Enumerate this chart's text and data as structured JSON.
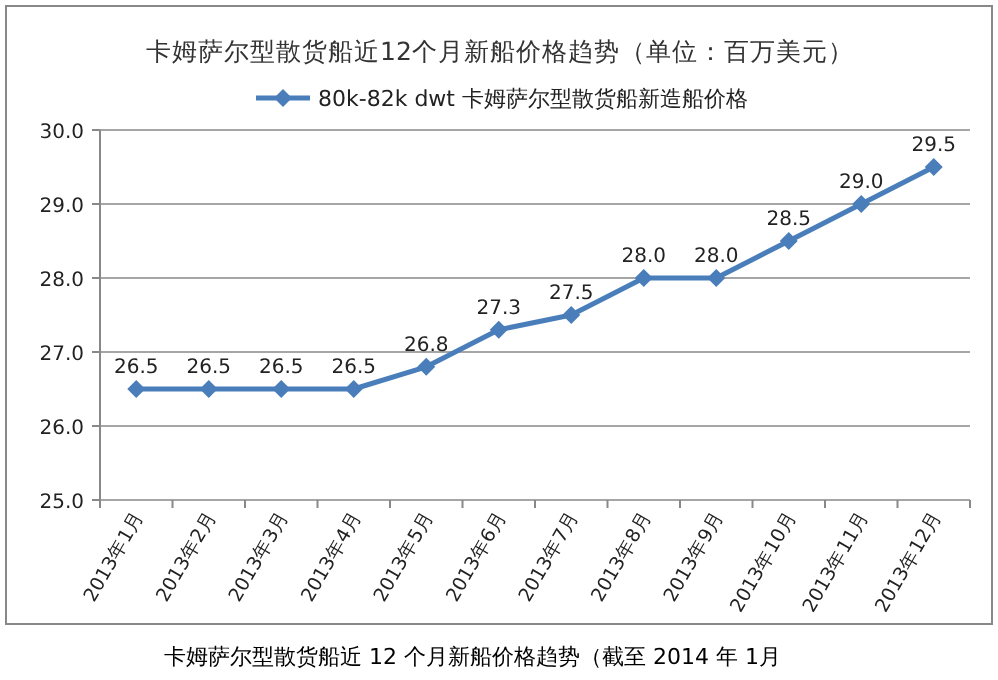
{
  "chart_data": {
    "type": "line",
    "title": "卡姆萨尔型散货船近12个月新船价格趋势（单位：百万美元）",
    "categories": [
      "2013年1月",
      "2013年2月",
      "2013年3月",
      "2013年4月",
      "2013年5月",
      "2013年6月",
      "2013年7月",
      "2013年8月",
      "2013年9月",
      "2013年10月",
      "2013年11月",
      "2013年12月"
    ],
    "series": [
      {
        "name": "80k-82k dwt 卡姆萨尔型散货船新造船价格",
        "color": "#4a7ebb",
        "values": [
          26.5,
          26.5,
          26.5,
          26.5,
          26.8,
          27.3,
          27.5,
          28.0,
          28.0,
          28.5,
          29.0,
          29.5
        ],
        "value_labels": [
          "26.5",
          "26.5",
          "26.5",
          "26.5",
          "26.8",
          "27.3",
          "27.5",
          "28.0",
          "28.0",
          "28.5",
          "29.0",
          "29.5"
        ]
      }
    ],
    "ylim": [
      25,
      30
    ],
    "yticks": [
      {
        "value": 25,
        "label": "25.0"
      },
      {
        "value": 26,
        "label": "26.0"
      },
      {
        "value": 27,
        "label": "27.0"
      },
      {
        "value": 28,
        "label": "28.0"
      },
      {
        "value": 29,
        "label": "29.0"
      },
      {
        "value": 30,
        "label": "30.0"
      }
    ],
    "grid": "y",
    "legend": "top",
    "marker": "diamond",
    "line_style": "solid",
    "annotations": [
      "卡姆萨尔型散货船近 12 个月新船价格趋势（截至 2014 年 1月"
    ]
  }
}
